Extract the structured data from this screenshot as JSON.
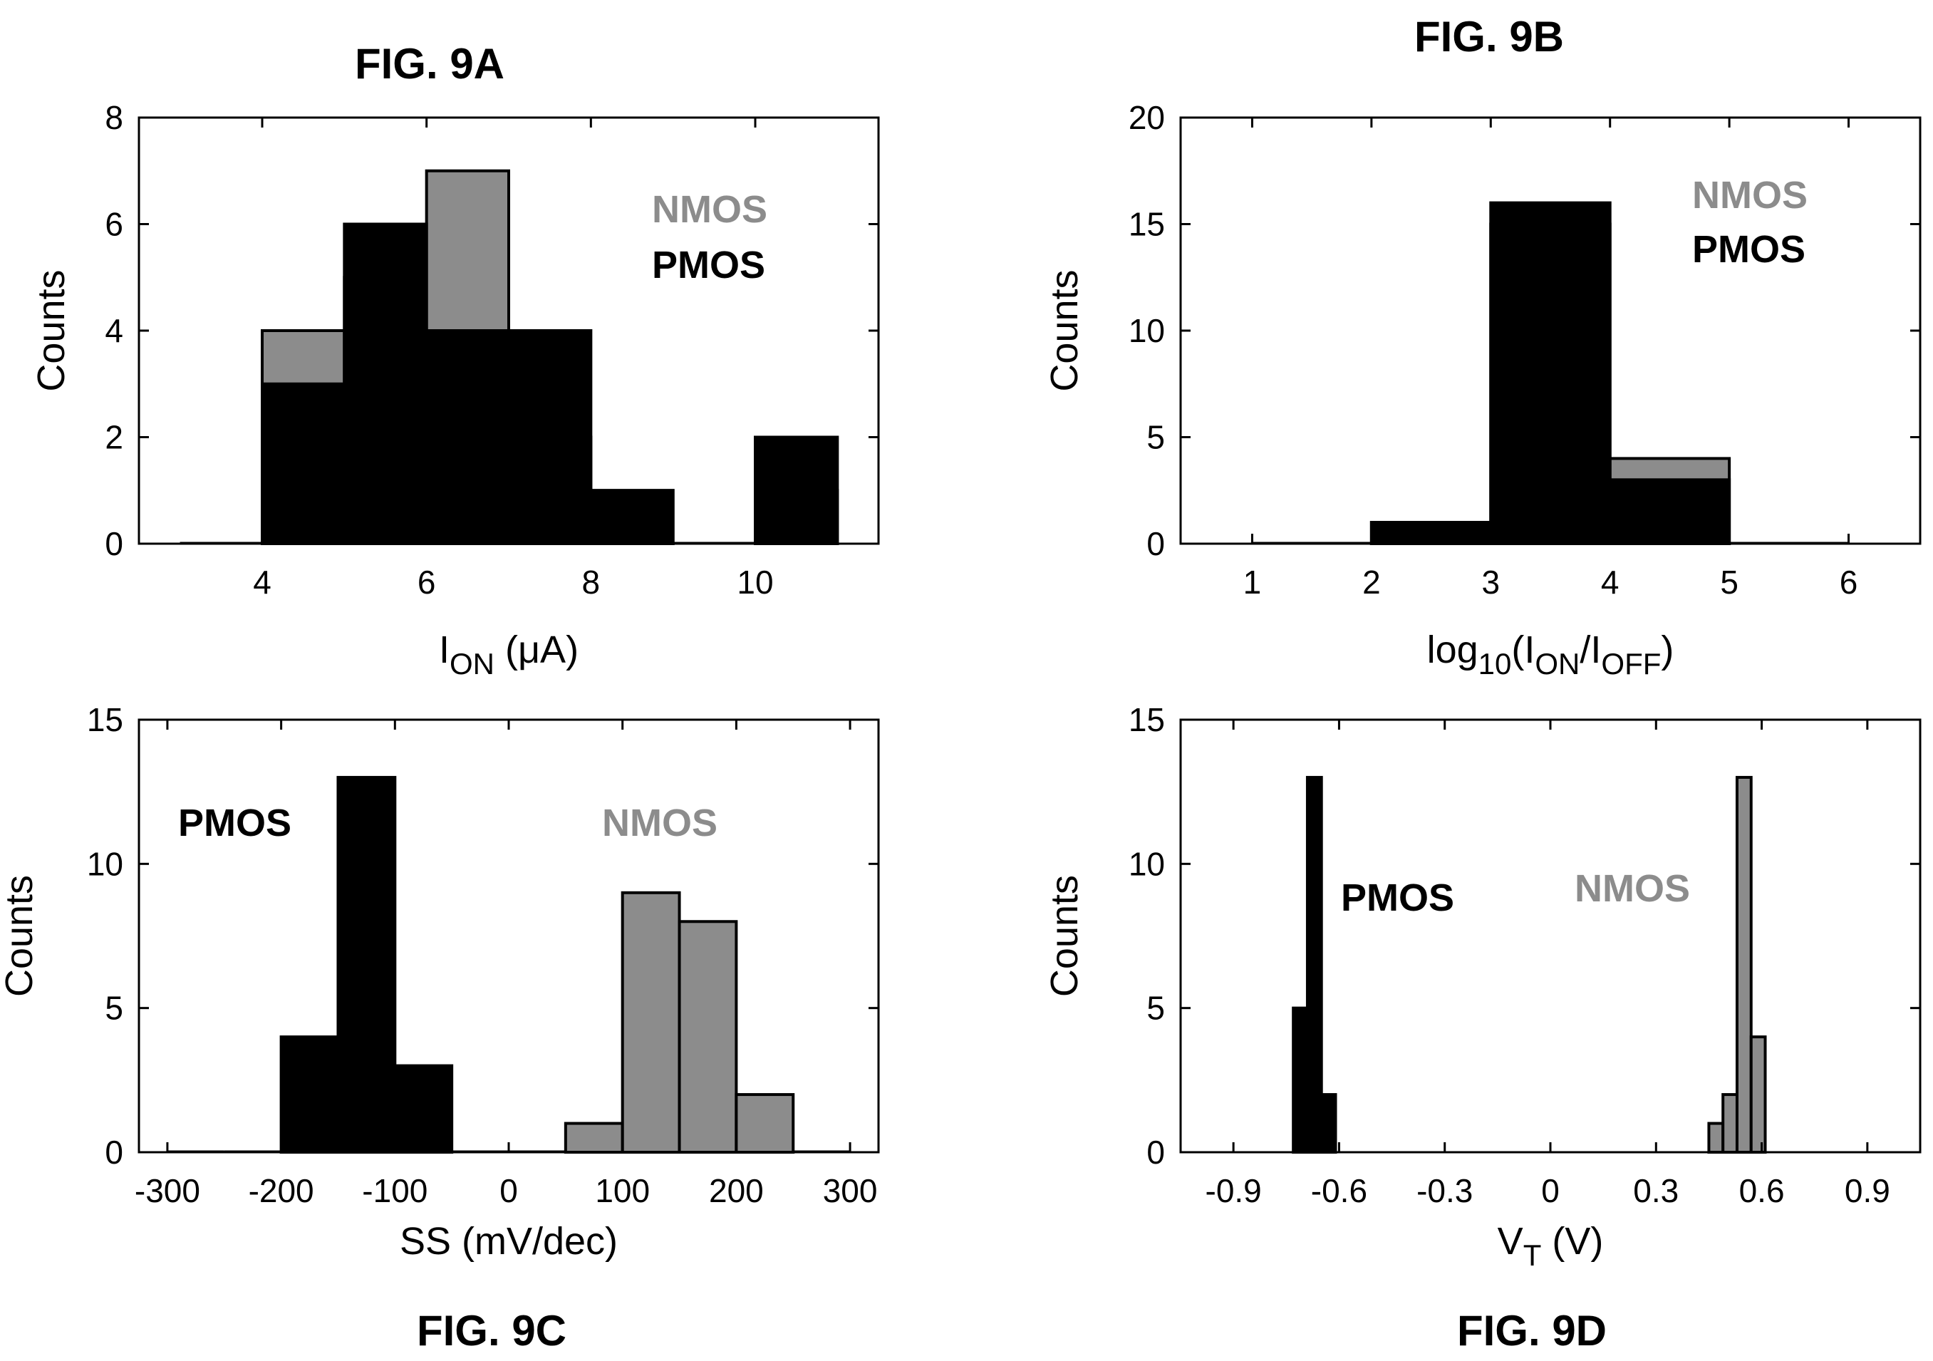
{
  "colors": {
    "nmos": "#8c8c8c",
    "pmos": "#000000",
    "axis": "#000000",
    "background": "#ffffff"
  },
  "chart_data": [
    {
      "id": "9a",
      "type": "bar",
      "title": "FIG. 9A",
      "xlabel": "I_ON (μA)",
      "xlabel_main": "I",
      "xlabel_sub": "ON",
      "xlabel_rest": " (μA)",
      "ylabel": "Counts",
      "xlim": [
        2.5,
        11.5
      ],
      "ylim": [
        0,
        8
      ],
      "xticks": [
        4,
        6,
        8,
        10
      ],
      "yticks": [
        0,
        2,
        4,
        6,
        8
      ],
      "xtick_labels": [
        "4",
        "6",
        "8",
        "10"
      ],
      "ytick_labels": [
        "0",
        "2",
        "4",
        "6",
        "8"
      ],
      "bin_width": 1.0,
      "legend": [
        {
          "name": "NMOS",
          "color": "#8c8c8c"
        },
        {
          "name": "PMOS",
          "color": "#000000"
        }
      ],
      "legend_position": "top-right",
      "series": [
        {
          "name": "NMOS",
          "color": "#8c8c8c",
          "centers": [
            3.5,
            4.5,
            5.5,
            6.5,
            7.5,
            8.5,
            9.5,
            10.5
          ],
          "values": [
            0,
            4,
            5,
            7,
            2,
            1,
            0,
            1
          ]
        },
        {
          "name": "PMOS",
          "color": "#000000",
          "centers": [
            3.5,
            4.5,
            5.5,
            6.5,
            7.5,
            8.5,
            9.5,
            10.5
          ],
          "values": [
            0,
            3,
            6,
            4,
            4,
            1,
            0,
            2
          ]
        }
      ]
    },
    {
      "id": "9b",
      "type": "bar",
      "title": "FIG. 9B",
      "xlabel": "log10(I_ON/I_OFF)",
      "xlabel_main": "log",
      "xlabel_sub": "10",
      "xlabel_rest": "(I",
      "xlabel_sub2": "ON",
      "xlabel_rest2": "/I",
      "xlabel_sub3": "OFF",
      "xlabel_rest3": ")",
      "ylabel": "Counts",
      "xlim": [
        0.4,
        6.6
      ],
      "ylim": [
        0,
        20
      ],
      "xticks": [
        1,
        2,
        3,
        4,
        5,
        6
      ],
      "yticks": [
        0,
        5,
        10,
        15,
        20
      ],
      "xtick_labels": [
        "1",
        "2",
        "3",
        "4",
        "5",
        "6"
      ],
      "ytick_labels": [
        "0",
        "5",
        "10",
        "15",
        "20"
      ],
      "bin_width": 1.0,
      "legend": [
        {
          "name": "NMOS",
          "color": "#8c8c8c"
        },
        {
          "name": "PMOS",
          "color": "#000000"
        }
      ],
      "legend_position": "top-right",
      "series": [
        {
          "name": "NMOS",
          "color": "#8c8c8c",
          "centers": [
            1.5,
            2.5,
            3.5,
            4.5,
            5.5
          ],
          "values": [
            0,
            1,
            15,
            4,
            0
          ]
        },
        {
          "name": "PMOS",
          "color": "#000000",
          "centers": [
            1.5,
            2.5,
            3.5,
            4.5,
            5.5
          ],
          "values": [
            0,
            1,
            16,
            3,
            0
          ]
        }
      ]
    },
    {
      "id": "9c",
      "type": "bar",
      "title": "FIG. 9C",
      "xlabel": "SS (mV/dec)",
      "xlabel_main": "SS (mV/dec)",
      "ylabel": "Counts",
      "xlim": [
        -325,
        325
      ],
      "ylim": [
        0,
        15
      ],
      "xticks": [
        -300,
        -200,
        -100,
        0,
        100,
        200,
        300
      ],
      "yticks": [
        0,
        5,
        10,
        15
      ],
      "xtick_labels": [
        "-300",
        "-200",
        "-100",
        "0",
        "100",
        "200",
        "300"
      ],
      "ytick_labels": [
        "0",
        "5",
        "10",
        "15"
      ],
      "bin_width": 50,
      "legend": [
        {
          "name": "PMOS",
          "color": "#000000"
        },
        {
          "name": "NMOS",
          "color": "#8c8c8c"
        }
      ],
      "legend_position": "top",
      "series": [
        {
          "name": "PMOS",
          "color": "#000000",
          "centers": [
            -275,
            -225,
            -175,
            -125,
            -75,
            -25,
            25
          ],
          "values": [
            0,
            0,
            4,
            13,
            3,
            0,
            0
          ]
        },
        {
          "name": "NMOS",
          "color": "#8c8c8c",
          "centers": [
            75,
            125,
            175,
            225,
            275
          ],
          "values": [
            1,
            9,
            8,
            2,
            0
          ]
        }
      ]
    },
    {
      "id": "9d",
      "type": "bar",
      "title": "FIG. 9D",
      "xlabel": "V_T (V)",
      "xlabel_main": "V",
      "xlabel_sub": "T",
      "xlabel_rest": " (V)",
      "ylabel": "Counts",
      "xlim": [
        -1.05,
        1.05
      ],
      "ylim": [
        0,
        15
      ],
      "xticks": [
        -0.9,
        -0.6,
        -0.3,
        0,
        0.3,
        0.6,
        0.9
      ],
      "yticks": [
        0,
        5,
        10,
        15
      ],
      "xtick_labels": [
        "-0.9",
        "-0.6",
        "-0.3",
        "0",
        "0.3",
        "0.6",
        "0.9"
      ],
      "ytick_labels": [
        "0",
        "5",
        "10",
        "15"
      ],
      "bin_width": 0.04,
      "legend": [
        {
          "name": "PMOS",
          "color": "#000000"
        },
        {
          "name": "NMOS",
          "color": "#8c8c8c"
        }
      ],
      "legend_position": "top",
      "series": [
        {
          "name": "PMOS",
          "color": "#000000",
          "centers": [
            -0.71,
            -0.67,
            -0.63
          ],
          "values": [
            5,
            13,
            2
          ]
        },
        {
          "name": "NMOS",
          "color": "#8c8c8c",
          "centers": [
            0.47,
            0.51,
            0.55,
            0.59
          ],
          "values": [
            1,
            2,
            13,
            4
          ]
        }
      ]
    }
  ]
}
